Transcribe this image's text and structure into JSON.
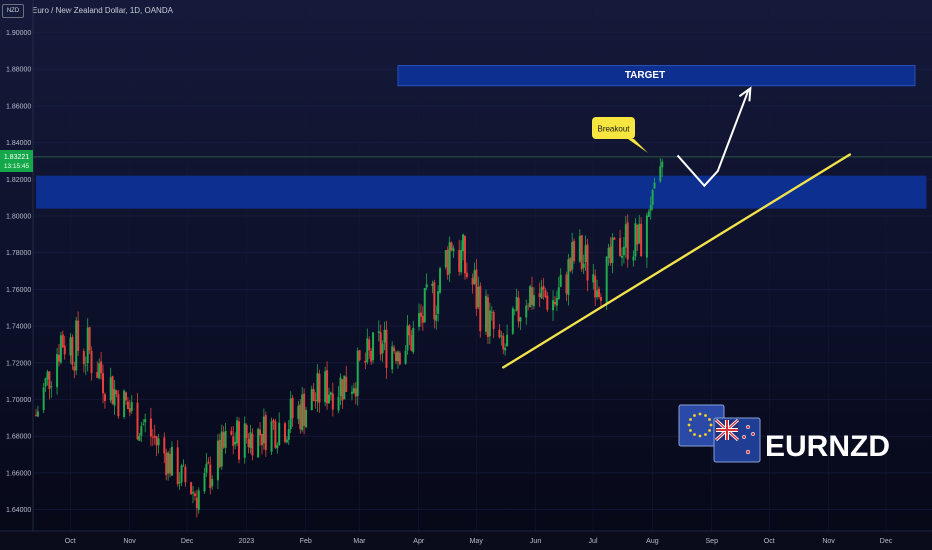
{
  "header": {
    "currency_badge": "NZD",
    "title": "Euro / New Zealand Dollar, 1D, OANDA"
  },
  "price_badge": {
    "price": "1.83221",
    "countdown": "13:15:45",
    "color": "#14a84a"
  },
  "annotations": {
    "target_label": "TARGET",
    "breakout_label": "Breakout",
    "logo_text": "EURNZD"
  },
  "colors": {
    "up": "#22ab4f",
    "down": "#e8413b",
    "zone": "#0d2f8f",
    "trendline": "#f2e34a",
    "callout": "#f7e640"
  },
  "chart_data": {
    "type": "candlestick",
    "y_ticks": [
      "1.90000",
      "1.88000",
      "1.86000",
      "1.84000",
      "1.82000",
      "1.80000",
      "1.78000",
      "1.76000",
      "1.74000",
      "1.72000",
      "1.70000",
      "1.68000",
      "1.66000",
      "1.64000"
    ],
    "x_ticks": [
      "Oct",
      "Nov",
      "Dec",
      "2023",
      "Feb",
      "Mar",
      "Apr",
      "May",
      "Jun",
      "Jul",
      "Aug",
      "Sep",
      "Oct",
      "Nov",
      "Dec"
    ],
    "ylim": [
      1.63,
      1.91
    ],
    "current_price": 1.83221,
    "zones": [
      {
        "name": "resistance-zone",
        "start": "2022-09-22",
        "end": "2023-12-31",
        "low": 1.804,
        "high": 1.822
      },
      {
        "name": "target-zone",
        "start": "2023-03-30",
        "end": "2023-12-25",
        "low": 1.871,
        "high": 1.882
      }
    ],
    "trendline": {
      "start": [
        "2023-05-24",
        1.7175
      ],
      "end": [
        "2023-11-21",
        1.8335
      ]
    },
    "projection": [
      [
        "2023-08-23",
        1.833
      ],
      [
        "2023-09-06",
        1.8165
      ],
      [
        "2023-09-13",
        1.8245
      ],
      [
        "2023-09-29",
        1.8685
      ]
    ],
    "ohlc_sampled": [
      {
        "date": "2022-09-22",
        "low": 1.678,
        "high": 1.705
      },
      {
        "date": "2022-10-05",
        "low": 1.715,
        "high": 1.752
      },
      {
        "date": "2022-10-20",
        "low": 1.705,
        "high": 1.745
      },
      {
        "date": "2022-11-05",
        "low": 1.685,
        "high": 1.715
      },
      {
        "date": "2022-11-20",
        "low": 1.665,
        "high": 1.7
      },
      {
        "date": "2022-12-05",
        "low": 1.648,
        "high": 1.672
      },
      {
        "date": "2022-12-15",
        "low": 1.636,
        "high": 1.66
      },
      {
        "date": "2023-01-01",
        "low": 1.66,
        "high": 1.695
      },
      {
        "date": "2023-01-15",
        "low": 1.668,
        "high": 1.694
      },
      {
        "date": "2023-02-01",
        "low": 1.672,
        "high": 1.706
      },
      {
        "date": "2023-02-20",
        "low": 1.69,
        "high": 1.722
      },
      {
        "date": "2023-03-05",
        "low": 1.694,
        "high": 1.726
      },
      {
        "date": "2023-03-20",
        "low": 1.712,
        "high": 1.745
      },
      {
        "date": "2023-04-05",
        "low": 1.715,
        "high": 1.748
      },
      {
        "date": "2023-04-20",
        "low": 1.74,
        "high": 1.78
      },
      {
        "date": "2023-04-27",
        "low": 1.768,
        "high": 1.808
      },
      {
        "date": "2023-05-10",
        "low": 1.735,
        "high": 1.78
      },
      {
        "date": "2023-05-24",
        "low": 1.716,
        "high": 1.735
      },
      {
        "date": "2023-06-05",
        "low": 1.74,
        "high": 1.778
      },
      {
        "date": "2023-06-20",
        "low": 1.742,
        "high": 1.765
      },
      {
        "date": "2023-07-01",
        "low": 1.758,
        "high": 1.8
      },
      {
        "date": "2023-07-15",
        "low": 1.75,
        "high": 1.778
      },
      {
        "date": "2023-07-25",
        "low": 1.77,
        "high": 1.805
      },
      {
        "date": "2023-08-05",
        "low": 1.772,
        "high": 1.8
      },
      {
        "date": "2023-08-15",
        "low": 1.805,
        "high": 1.836
      }
    ]
  }
}
